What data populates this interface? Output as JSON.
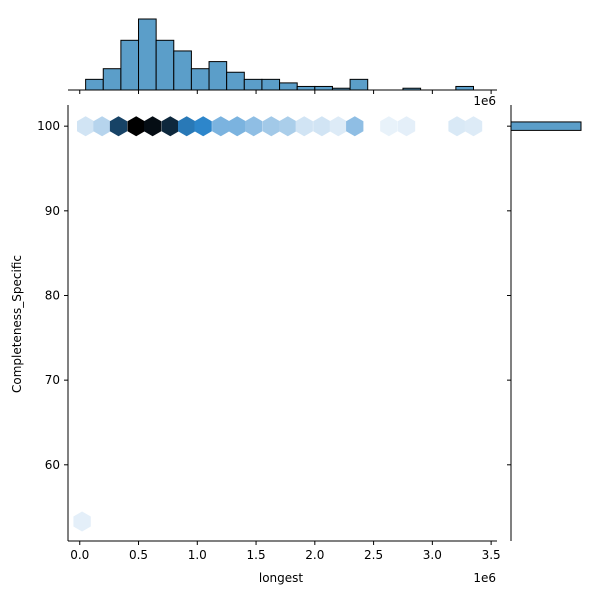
{
  "chart_data": {
    "type": "hexbin-jointplot",
    "xlabel": "longest",
    "ylabel": "Completeness_Specific",
    "x_offset_label": "1e6",
    "top_offset_label": "1e6",
    "xlim": [
      -0.1,
      3.55
    ],
    "ylim": [
      51,
      102.5
    ],
    "x_ticks": [
      0.0,
      0.5,
      1.0,
      1.5,
      2.0,
      2.5,
      3.0,
      3.5
    ],
    "x_tick_labels": [
      "0.0",
      "0.5",
      "1.0",
      "1.5",
      "2.0",
      "2.5",
      "3.0",
      "3.5"
    ],
    "y_ticks": [
      60,
      70,
      80,
      90,
      100
    ],
    "y_tick_labels": [
      "60",
      "70",
      "80",
      "90",
      "100"
    ],
    "grid": false,
    "hexbin_cells": [
      {
        "x": 0.05,
        "y": 100,
        "density": 0.08
      },
      {
        "x": 0.19,
        "y": 100,
        "density": 0.15
      },
      {
        "x": 0.33,
        "y": 100,
        "density": 0.75
      },
      {
        "x": 0.48,
        "y": 100,
        "density": 1.0
      },
      {
        "x": 0.62,
        "y": 100,
        "density": 0.95
      },
      {
        "x": 0.77,
        "y": 100,
        "density": 0.85
      },
      {
        "x": 0.91,
        "y": 100,
        "density": 0.55
      },
      {
        "x": 1.05,
        "y": 100,
        "density": 0.5
      },
      {
        "x": 1.2,
        "y": 100,
        "density": 0.3
      },
      {
        "x": 1.34,
        "y": 100,
        "density": 0.3
      },
      {
        "x": 1.48,
        "y": 100,
        "density": 0.25
      },
      {
        "x": 1.63,
        "y": 100,
        "density": 0.2
      },
      {
        "x": 1.77,
        "y": 100,
        "density": 0.18
      },
      {
        "x": 1.91,
        "y": 100,
        "density": 0.08
      },
      {
        "x": 2.06,
        "y": 100,
        "density": 0.08
      },
      {
        "x": 2.2,
        "y": 100,
        "density": 0.05
      },
      {
        "x": 2.34,
        "y": 100,
        "density": 0.25
      },
      {
        "x": 2.63,
        "y": 100,
        "density": 0.02
      },
      {
        "x": 2.78,
        "y": 100,
        "density": 0.03
      },
      {
        "x": 3.21,
        "y": 100,
        "density": 0.06
      },
      {
        "x": 3.35,
        "y": 100,
        "density": 0.05
      },
      {
        "x": 0.02,
        "y": 53.3,
        "density": 0.03
      }
    ],
    "top_histogram": {
      "bin_edges": [
        0.05,
        0.2,
        0.35,
        0.5,
        0.65,
        0.8,
        0.95,
        1.1,
        1.25,
        1.4,
        1.55,
        1.7,
        1.85,
        2.0,
        2.15,
        2.3,
        2.45,
        2.6,
        2.75,
        2.9,
        3.05,
        3.2,
        3.35
      ],
      "counts": [
        3,
        6,
        14,
        20,
        14,
        11,
        6,
        8,
        5,
        3,
        3,
        2,
        1,
        1,
        0.5,
        3,
        0,
        0,
        0.5,
        0,
        0,
        1
      ]
    },
    "right_histogram": {
      "bin_range": [
        99.5,
        100.5
      ],
      "count": 1
    },
    "colors": {
      "hist_fill": "#5b9ec9",
      "hist_edge": "#000000",
      "hex_light": "#f0f6fc",
      "hex_mid": "#2d86cb",
      "hex_dark": "#000000"
    }
  }
}
